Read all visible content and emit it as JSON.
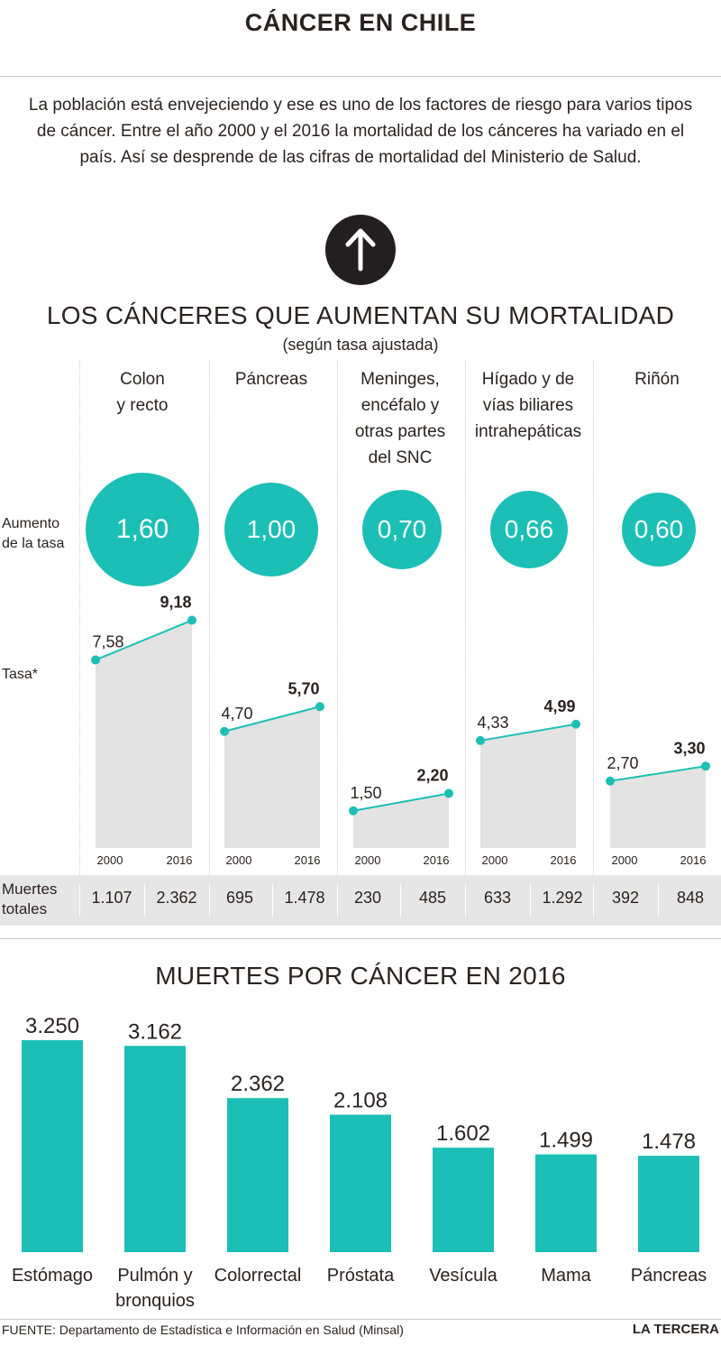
{
  "header": {
    "title": "CÁNCER EN CHILE"
  },
  "intro": "La población está envejeciendo y ese es uno de los factores de riesgo para varios tipos de cáncer. Entre el año 2000 y el 2016 la mortalidad de los cánceres ha variado en el país. Así se desprende de las cifras de mortalidad del Ministerio de Salud.",
  "icons": {
    "arrow": "arrow-up-icon"
  },
  "colors": {
    "teal": "#1cbfb5",
    "gray_area": "#e3e3e3",
    "dark": "#231f20"
  },
  "section1": {
    "title": "LOS CÁNCERES QUE AUMENTAN SU MORTALIDAD",
    "subtitle": "(según tasa ajustada)",
    "row_labels": {
      "increase": "Aumento\nde la tasa",
      "rate": "Tasa*",
      "deaths": "Muertes\ntotales"
    },
    "categories": [
      {
        "label": "Colon\ny recto",
        "increase": "1,60"
      },
      {
        "label": "Páncreas",
        "increase": "1,00"
      },
      {
        "label": "Meninges,\nencéfalo y\notras partes\ndel SNC",
        "increase": "0,70"
      },
      {
        "label": "Hígado y de\nvías biliares\nintrahepáticas",
        "increase": "0,66"
      },
      {
        "label": "Riñón",
        "increase": "0,60"
      }
    ]
  },
  "chart_data": [
    {
      "type": "line",
      "x": [
        "2000",
        "2016"
      ],
      "ylabel": "Tasa*",
      "panels": [
        {
          "category": "Colon y recto",
          "values": [
            7.58,
            9.18
          ],
          "labels": [
            "7,58",
            "9,18"
          ],
          "deaths": [
            "1.107",
            "2.362"
          ]
        },
        {
          "category": "Páncreas",
          "values": [
            4.7,
            5.7
          ],
          "labels": [
            "4,70",
            "5,70"
          ],
          "deaths": [
            "695",
            "1.478"
          ]
        },
        {
          "category": "Meninges, encéfalo y otras partes del SNC",
          "values": [
            1.5,
            2.2
          ],
          "labels": [
            "1,50",
            "2,20"
          ],
          "deaths": [
            "230",
            "485"
          ]
        },
        {
          "category": "Hígado y de vías biliares intrahepáticas",
          "values": [
            4.33,
            4.99
          ],
          "labels": [
            "4,33",
            "4,99"
          ],
          "deaths": [
            "633",
            "1.292"
          ]
        },
        {
          "category": "Riñón",
          "values": [
            2.7,
            3.3
          ],
          "labels": [
            "2,70",
            "3,30"
          ],
          "deaths": [
            "392",
            "848"
          ]
        }
      ]
    },
    {
      "type": "bar",
      "title": "MUERTES POR CÁNCER EN 2016",
      "categories": [
        "Estómago",
        "Pulmón y\nbronquios",
        "Colorrectal",
        "Próstata",
        "Vesícula",
        "Mama",
        "Páncreas"
      ],
      "values": [
        3250,
        3162,
        2362,
        2108,
        1602,
        1499,
        1478
      ],
      "labels": [
        "3.250",
        "3.162",
        "2.362",
        "2.108",
        "1.602",
        "1.499",
        "1.478"
      ]
    }
  ],
  "footer": {
    "source": "FUENTE: Departamento de Estadística e Información en Salud (Minsal)",
    "brand": "LA TERCERA"
  }
}
